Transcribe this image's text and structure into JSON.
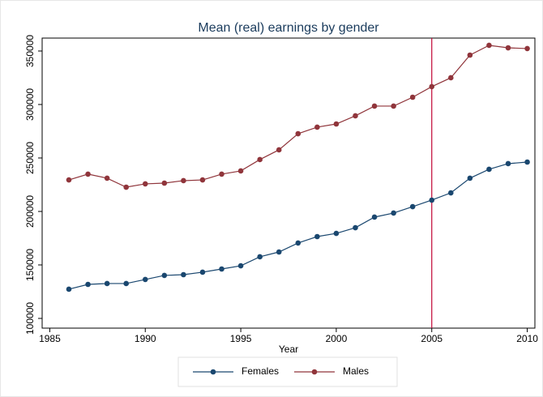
{
  "chart_data": {
    "type": "line",
    "title": "Mean (real) earnings by gender",
    "x_label": "Year",
    "x": [
      1986,
      1987,
      1988,
      1989,
      1990,
      1991,
      1992,
      1993,
      1994,
      1995,
      1996,
      1997,
      1998,
      1999,
      2000,
      2001,
      2002,
      2003,
      2004,
      2005,
      2006,
      2007,
      2008,
      2009,
      2010
    ],
    "series": [
      {
        "name": "Females",
        "color": "#1a476f",
        "values": [
          127300,
          131800,
          132600,
          132600,
          136400,
          140200,
          140900,
          143200,
          146200,
          149200,
          157600,
          162100,
          170500,
          176500,
          179500,
          184800,
          194700,
          198500,
          204500,
          210600,
          217400,
          231100,
          239400,
          244700,
          246200
        ]
      },
      {
        "name": "Males",
        "color": "#90353b",
        "values": [
          229500,
          234900,
          231100,
          222700,
          225800,
          226500,
          228800,
          229500,
          234900,
          237900,
          248500,
          257600,
          272700,
          278800,
          281800,
          289400,
          298500,
          298500,
          306800,
          316700,
          325000,
          346200,
          355300,
          353000,
          352300
        ]
      }
    ],
    "xline": 2005,
    "xline_color": "#c10534",
    "xlim": [
      1984.6,
      2010.4
    ],
    "xticks": [
      1985,
      1990,
      1995,
      2000,
      2005,
      2010
    ],
    "ylim": [
      90900,
      362100
    ],
    "yticks": [
      100000,
      150000,
      200000,
      250000,
      300000,
      350000
    ],
    "legend": "bottom"
  }
}
